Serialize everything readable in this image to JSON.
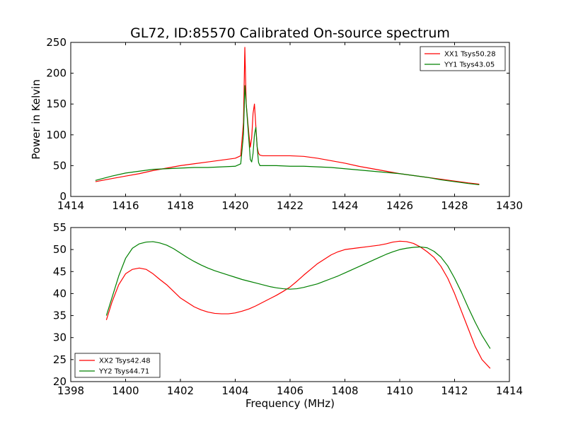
{
  "figure": {
    "title": "GL72, ID:85570 Calibrated On-source spectrum"
  },
  "colors": {
    "red": "#ff0000",
    "green": "#008000"
  },
  "chart_data": [
    {
      "type": "line",
      "title": "GL72, ID:85570 Calibrated On-source spectrum",
      "xlabel": "",
      "ylabel": "Power in Kelvin",
      "xlim": [
        1414,
        1430
      ],
      "ylim": [
        0,
        250
      ],
      "xticks": [
        1414,
        1416,
        1418,
        1420,
        1422,
        1424,
        1426,
        1428,
        1430
      ],
      "yticks": [
        0,
        50,
        100,
        150,
        200,
        250
      ],
      "legend": "upper-right",
      "grid": false,
      "series": [
        {
          "name": "XX1 Tsys50.28",
          "color": "#ff0000",
          "x": [
            1414.9,
            1415.5,
            1416.0,
            1416.5,
            1417.0,
            1417.5,
            1418.0,
            1418.5,
            1419.0,
            1419.5,
            1420.0,
            1420.2,
            1420.3,
            1420.35,
            1420.4,
            1420.45,
            1420.5,
            1420.55,
            1420.6,
            1420.65,
            1420.7,
            1420.75,
            1420.8,
            1420.85,
            1420.9,
            1421.0,
            1421.5,
            1422.0,
            1422.5,
            1423.0,
            1423.5,
            1424.0,
            1424.5,
            1425.0,
            1425.5,
            1426.0,
            1426.5,
            1427.0,
            1427.5,
            1428.0,
            1428.5,
            1428.9
          ],
          "y": [
            24,
            29,
            33,
            37,
            42,
            46,
            50,
            53,
            56,
            59,
            62,
            66,
            120,
            242,
            150,
            125,
            100,
            80,
            95,
            135,
            150,
            115,
            80,
            70,
            67,
            66,
            66,
            66,
            65,
            62,
            58,
            54,
            49,
            45,
            41,
            37,
            34,
            31,
            28,
            25,
            22,
            20
          ]
        },
        {
          "name": "YY1 Tsys43.05",
          "color": "#008000",
          "x": [
            1414.9,
            1415.5,
            1416.0,
            1416.5,
            1417.0,
            1417.5,
            1418.0,
            1418.5,
            1419.0,
            1419.5,
            1420.0,
            1420.2,
            1420.3,
            1420.35,
            1420.4,
            1420.45,
            1420.5,
            1420.55,
            1420.6,
            1420.65,
            1420.7,
            1420.75,
            1420.8,
            1420.85,
            1420.9,
            1421.0,
            1421.5,
            1422.0,
            1422.5,
            1423.0,
            1423.5,
            1424.0,
            1424.5,
            1425.0,
            1425.5,
            1426.0,
            1426.5,
            1427.0,
            1427.5,
            1428.0,
            1428.5,
            1428.9
          ],
          "y": [
            26,
            33,
            38,
            41,
            44,
            45,
            46,
            47,
            47,
            48,
            49,
            53,
            100,
            180,
            150,
            120,
            90,
            60,
            56,
            70,
            100,
            112,
            80,
            55,
            50,
            50,
            50,
            49,
            49,
            48,
            47,
            45,
            43,
            41,
            39,
            37,
            34,
            31,
            27,
            24,
            21,
            19
          ]
        }
      ]
    },
    {
      "type": "line",
      "title": "",
      "xlabel": "Frequency (MHz)",
      "ylabel": "",
      "xlim": [
        1398,
        1414
      ],
      "ylim": [
        20,
        55
      ],
      "xticks": [
        1398,
        1400,
        1402,
        1404,
        1406,
        1408,
        1410,
        1412,
        1414
      ],
      "yticks": [
        20,
        25,
        30,
        35,
        40,
        45,
        50,
        55
      ],
      "legend": "lower-left",
      "grid": false,
      "series": [
        {
          "name": "XX2 Tsys42.48",
          "color": "#ff0000",
          "x": [
            1399.3,
            1399.5,
            1399.75,
            1400.0,
            1400.25,
            1400.5,
            1400.75,
            1401.0,
            1401.25,
            1401.5,
            1401.75,
            1402.0,
            1402.25,
            1402.5,
            1402.75,
            1403.0,
            1403.25,
            1403.5,
            1403.75,
            1404.0,
            1404.25,
            1404.5,
            1404.75,
            1405.0,
            1405.25,
            1405.5,
            1405.75,
            1406.0,
            1406.25,
            1406.5,
            1406.75,
            1407.0,
            1407.25,
            1407.5,
            1407.75,
            1408.0,
            1408.25,
            1408.5,
            1408.75,
            1409.0,
            1409.25,
            1409.5,
            1409.75,
            1410.0,
            1410.25,
            1410.5,
            1410.75,
            1411.0,
            1411.25,
            1411.5,
            1411.75,
            1412.0,
            1412.25,
            1412.5,
            1412.75,
            1413.0,
            1413.3
          ],
          "y": [
            34,
            38,
            42,
            44.5,
            45.5,
            45.8,
            45.5,
            44.5,
            43.2,
            42,
            40.5,
            39,
            38,
            37,
            36.3,
            35.8,
            35.5,
            35.4,
            35.4,
            35.6,
            36,
            36.5,
            37.2,
            38,
            38.8,
            39.6,
            40.5,
            41.5,
            42.8,
            44.2,
            45.5,
            46.8,
            47.8,
            48.8,
            49.5,
            50,
            50.2,
            50.4,
            50.6,
            50.8,
            51,
            51.3,
            51.7,
            51.9,
            51.8,
            51.4,
            50.6,
            49.5,
            48.2,
            46.2,
            43.5,
            40,
            36,
            32,
            28,
            25,
            23
          ]
        },
        {
          "name": "YY2 Tsys44.71",
          "color": "#008000",
          "x": [
            1399.3,
            1399.5,
            1399.75,
            1400.0,
            1400.25,
            1400.5,
            1400.75,
            1401.0,
            1401.25,
            1401.5,
            1401.75,
            1402.0,
            1402.25,
            1402.5,
            1402.75,
            1403.0,
            1403.25,
            1403.5,
            1403.75,
            1404.0,
            1404.25,
            1404.5,
            1404.75,
            1405.0,
            1405.25,
            1405.5,
            1405.75,
            1406.0,
            1406.25,
            1406.5,
            1406.75,
            1407.0,
            1407.25,
            1407.5,
            1407.75,
            1408.0,
            1408.25,
            1408.5,
            1408.75,
            1409.0,
            1409.25,
            1409.5,
            1409.75,
            1410.0,
            1410.25,
            1410.5,
            1410.75,
            1411.0,
            1411.25,
            1411.5,
            1411.75,
            1412.0,
            1412.25,
            1412.5,
            1412.75,
            1413.0,
            1413.3
          ],
          "y": [
            35,
            39,
            44,
            48,
            50.3,
            51.3,
            51.7,
            51.8,
            51.5,
            51,
            50.2,
            49.2,
            48.2,
            47.3,
            46.5,
            45.8,
            45.2,
            44.7,
            44.2,
            43.7,
            43.2,
            42.8,
            42.4,
            42,
            41.6,
            41.3,
            41.1,
            41,
            41.1,
            41.4,
            41.8,
            42.2,
            42.8,
            43.4,
            44,
            44.7,
            45.4,
            46.1,
            46.8,
            47.5,
            48.2,
            48.9,
            49.5,
            50,
            50.3,
            50.5,
            50.6,
            50.4,
            49.6,
            48.3,
            46.3,
            43.5,
            40.3,
            36.8,
            33.5,
            30.5,
            27.5
          ]
        }
      ]
    }
  ]
}
